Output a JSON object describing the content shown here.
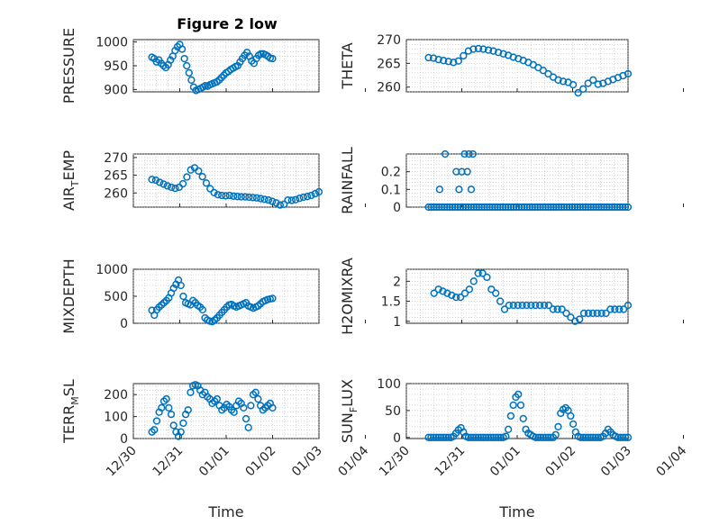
{
  "figure": {
    "title": "Figure 2 low",
    "marker_color": "#0072bd",
    "time_ticks": [
      "12/30",
      "12/31",
      "01/01",
      "01/02",
      "01/03",
      "01/04"
    ],
    "xlabel": "Time"
  },
  "chart_data": [
    {
      "id": "pressure",
      "type": "scatter",
      "ylabel": "PRESSURE",
      "ylim": [
        895,
        1005
      ],
      "yticks": [
        "900",
        "950",
        "1000"
      ],
      "ytick_values": [
        900,
        950,
        1000
      ],
      "title": "Figure 2 low",
      "x_start": 30.4,
      "x_end": 33.0,
      "y": [
        968,
        965,
        958,
        962,
        955,
        950,
        946,
        952,
        962,
        970,
        982,
        990,
        995,
        985,
        965,
        950,
        935,
        920,
        905,
        898,
        900,
        902,
        905,
        908,
        907,
        910,
        912,
        914,
        916,
        920,
        925,
        930,
        935,
        938,
        942,
        945,
        948,
        950,
        958,
        965,
        972,
        978,
        970,
        960,
        955,
        965,
        972,
        975,
        975,
        973,
        970,
        966,
        965
      ]
    },
    {
      "id": "theta",
      "type": "scatter",
      "ylabel": "THETA",
      "ylim": [
        259,
        270
      ],
      "yticks": [
        "260",
        "265",
        "270"
      ],
      "ytick_values": [
        260,
        265,
        270
      ],
      "x_start": 30.4,
      "x_end": 34.0,
      "y": [
        266.2,
        266.1,
        265.8,
        265.6,
        265.4,
        265.2,
        265.5,
        266.6,
        267.6,
        268.0,
        268.1,
        268.0,
        267.8,
        267.6,
        267.3,
        267.0,
        266.7,
        266.3,
        266.0,
        265.6,
        265.2,
        264.7,
        264.1,
        263.5,
        262.8,
        262.1,
        261.5,
        261.2,
        261.0,
        260.5,
        258.8,
        259.6,
        260.8,
        261.5,
        260.6,
        260.8,
        261.2,
        261.6,
        262.0,
        262.4,
        262.8
      ]
    },
    {
      "id": "air_temp",
      "type": "scatter",
      "ylabel": "AIR_TEMP",
      "ylabel_main": "AIR",
      "ylabel_sub": "T",
      "ylabel_tail": "EMP",
      "ylim": [
        256,
        271
      ],
      "yticks": [
        "260",
        "265",
        "270"
      ],
      "ytick_values": [
        260,
        265,
        270
      ],
      "x_start": 30.4,
      "x_end": 34.0,
      "y": [
        263.8,
        263.6,
        263.0,
        262.5,
        262.0,
        261.6,
        261.3,
        261.6,
        262.6,
        264.5,
        266.5,
        267.1,
        266.2,
        264.6,
        262.8,
        261.2,
        260.1,
        259.5,
        259.3,
        259.2,
        259.3,
        259.1,
        259.0,
        258.9,
        258.9,
        258.8,
        258.7,
        258.6,
        258.4,
        258.2,
        258.0,
        257.6,
        257.2,
        256.6,
        256.8,
        258.0,
        257.9,
        258.1,
        258.5,
        258.8,
        259.0,
        259.3,
        259.8,
        260.3
      ]
    },
    {
      "id": "rainfall",
      "type": "scatter",
      "ylabel": "RAINFALL",
      "ylim": [
        0,
        0.3
      ],
      "yticks": [
        "0",
        "0.1",
        "0.2"
      ],
      "ytick_values": [
        0,
        0.1,
        0.2
      ],
      "x_start": 30.4,
      "x_end": 34.0,
      "baseline_points": 76,
      "nonzero_points": [
        {
          "x": 30.6,
          "y": 0.1
        },
        {
          "x": 30.7,
          "y": 0.3
        },
        {
          "x": 30.9,
          "y": 0.2
        },
        {
          "x": 30.95,
          "y": 0.1
        },
        {
          "x": 31.0,
          "y": 0.2
        },
        {
          "x": 31.05,
          "y": 0.3
        },
        {
          "x": 31.1,
          "y": 0.2
        },
        {
          "x": 31.13,
          "y": 0.3
        },
        {
          "x": 31.17,
          "y": 0.1
        },
        {
          "x": 31.2,
          "y": 0.3
        }
      ]
    },
    {
      "id": "mixdepth",
      "type": "scatter",
      "ylabel": "MIXDEPTH",
      "ylim": [
        0,
        1000
      ],
      "yticks": [
        "0",
        "500",
        "1000"
      ],
      "ytick_values": [
        0,
        500,
        1000
      ],
      "x_start": 30.4,
      "x_end": 33.0,
      "y": [
        240,
        150,
        250,
        300,
        340,
        380,
        420,
        470,
        560,
        650,
        720,
        800,
        700,
        500,
        380,
        360,
        340,
        420,
        380,
        330,
        300,
        250,
        100,
        60,
        40,
        30,
        60,
        100,
        150,
        200,
        250,
        300,
        340,
        350,
        320,
        300,
        320,
        340,
        360,
        380,
        320,
        300,
        280,
        300,
        320,
        360,
        400,
        420,
        440,
        450,
        460
      ]
    },
    {
      "id": "h2omixra",
      "type": "scatter",
      "ylabel": "H2OMIXRA",
      "ylim": [
        0.95,
        2.3
      ],
      "yticks": [
        "1",
        "1.5",
        "2"
      ],
      "ytick_values": [
        1,
        1.5,
        2
      ],
      "x_start": 30.5,
      "x_end": 34.0,
      "y": [
        1.7,
        1.8,
        1.75,
        1.7,
        1.65,
        1.6,
        1.6,
        1.7,
        1.8,
        2.0,
        2.2,
        2.2,
        2.1,
        1.8,
        1.7,
        1.5,
        1.3,
        1.4,
        1.4,
        1.4,
        1.4,
        1.4,
        1.4,
        1.4,
        1.4,
        1.4,
        1.4,
        1.3,
        1.3,
        1.3,
        1.2,
        1.1,
        1.0,
        1.05,
        1.2,
        1.2,
        1.2,
        1.2,
        1.2,
        1.2,
        1.3,
        1.3,
        1.3,
        1.3,
        1.4
      ]
    },
    {
      "id": "terr_msl",
      "type": "scatter",
      "ylabel": "TERR_MSL",
      "ylabel_main": "TERR",
      "ylabel_sub": "M",
      "ylabel_tail": "SL",
      "ylim": [
        0,
        250
      ],
      "yticks": [
        "0",
        "100",
        "200"
      ],
      "ytick_values": [
        0,
        100,
        200
      ],
      "x_start": 30.4,
      "x_end": 33.0,
      "y": [
        30,
        40,
        80,
        120,
        140,
        170,
        180,
        140,
        110,
        60,
        30,
        10,
        30,
        70,
        110,
        130,
        210,
        240,
        245,
        240,
        220,
        200,
        210,
        190,
        180,
        160,
        170,
        180,
        150,
        130,
        140,
        155,
        145,
        130,
        120,
        150,
        170,
        160,
        140,
        90,
        50,
        150,
        200,
        210,
        180,
        150,
        130,
        140,
        150,
        160,
        140
      ]
    },
    {
      "id": "sun_flux",
      "type": "scatter",
      "ylabel": "SUN_FLUX",
      "ylabel_main": "SUN",
      "ylabel_sub": "F",
      "ylabel_tail": "LUX",
      "ylim": [
        -2,
        100
      ],
      "yticks": [
        "0",
        "50",
        "100"
      ],
      "ytick_values": [
        0,
        50,
        100
      ],
      "x_start": 30.4,
      "x_end": 34.0,
      "y": [
        0,
        0,
        0,
        0,
        0,
        0,
        0,
        0,
        0,
        0,
        2,
        8,
        14,
        18,
        10,
        2,
        0,
        0,
        0,
        0,
        0,
        0,
        0,
        0,
        0,
        0,
        0,
        0,
        0,
        0,
        0,
        2,
        15,
        40,
        60,
        75,
        80,
        60,
        35,
        15,
        8,
        5,
        2,
        0,
        0,
        0,
        0,
        0,
        0,
        0,
        0,
        5,
        20,
        45,
        52,
        55,
        50,
        40,
        25,
        10,
        2,
        0,
        0,
        0,
        0,
        0,
        0,
        0,
        0,
        0,
        2,
        8,
        15,
        10,
        5,
        2,
        0,
        0,
        0,
        0,
        0
      ]
    }
  ]
}
